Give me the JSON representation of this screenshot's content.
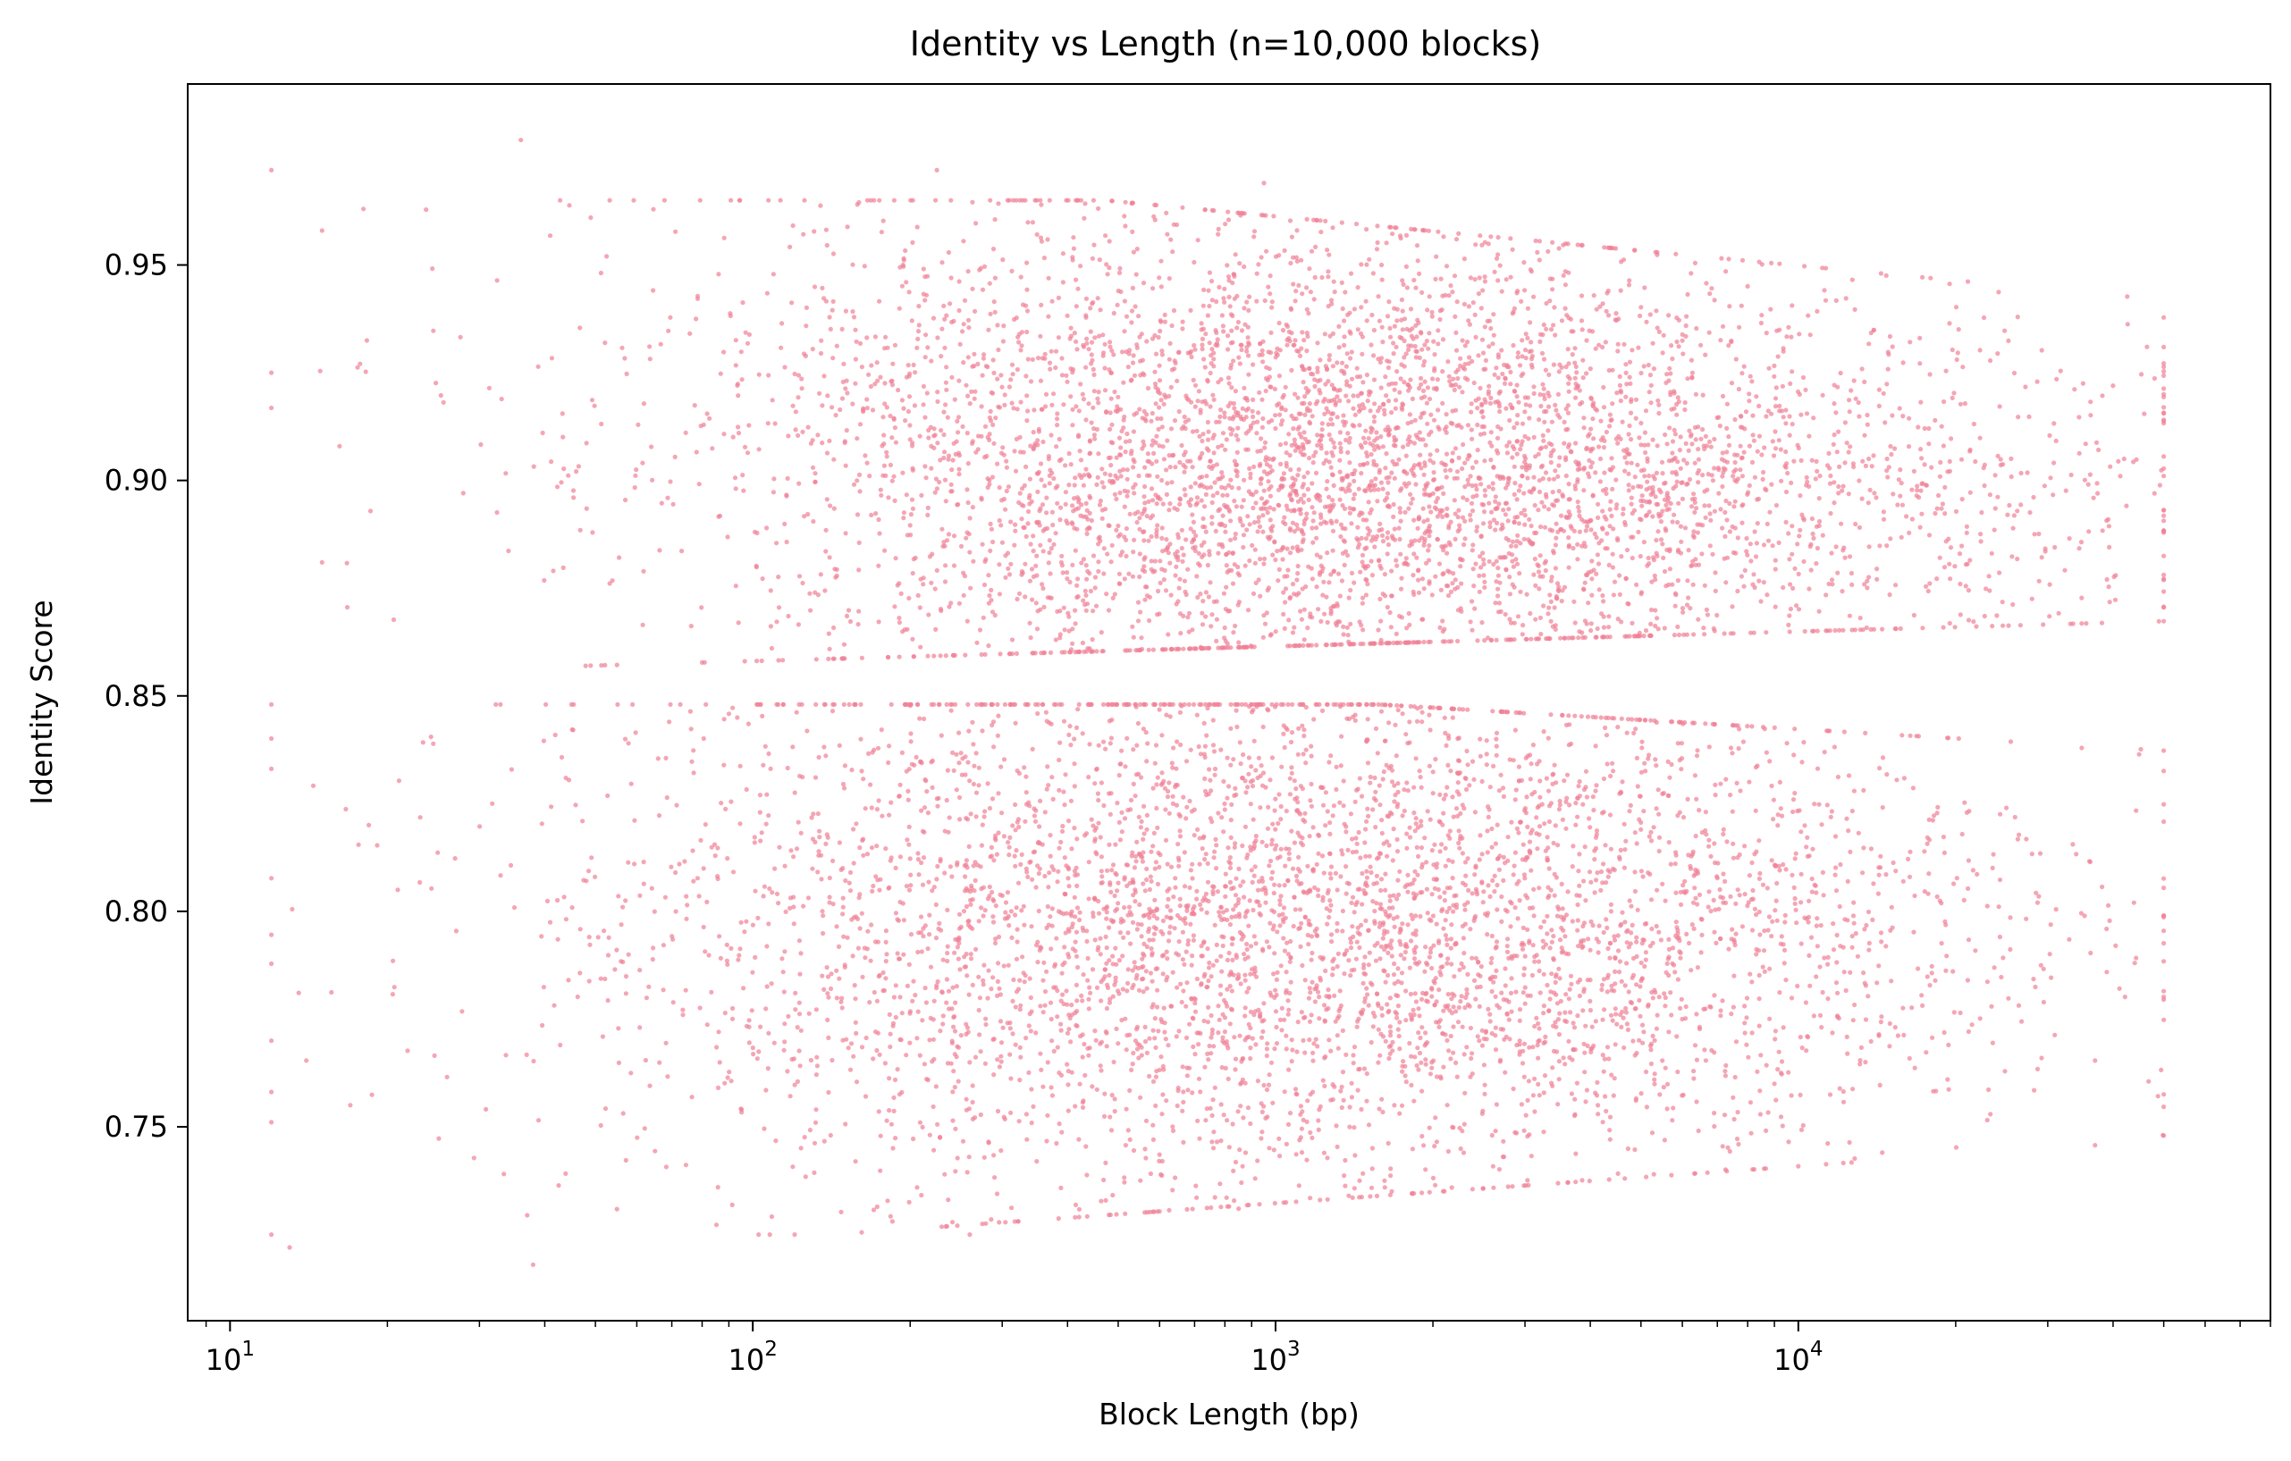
{
  "chart_data": {
    "type": "scatter",
    "title": "Identity vs Length (n=10,000 blocks)",
    "xlabel": "Block Length (bp)",
    "ylabel": "Identity Score",
    "xscale": "log",
    "xlim": [
      8.3,
      80000
    ],
    "ylim": [
      0.705,
      0.992
    ],
    "x_ticks": [
      {
        "base": "10",
        "exp": "1",
        "value": 10
      },
      {
        "base": "10",
        "exp": "2",
        "value": 100
      },
      {
        "base": "10",
        "exp": "3",
        "value": 1000
      },
      {
        "base": "10",
        "exp": "4",
        "value": 10000
      }
    ],
    "y_ticks": [
      "0.75",
      "0.80",
      "0.85",
      "0.90",
      "0.95"
    ],
    "y_tick_values": [
      0.75,
      0.8,
      0.85,
      0.9,
      0.95
    ],
    "marker_color": "#f08095",
    "marker_opacity": 0.7,
    "grid": false,
    "legend": "none",
    "clusters": [
      {
        "identity_range": [
          0.855,
          0.97
        ],
        "length_range_bp": [
          12,
          50000
        ],
        "center_identity": 0.905,
        "center_length_bp": 1500
      },
      {
        "identity_range": [
          0.72,
          0.85
        ],
        "length_range_bp": [
          12,
          50000
        ],
        "center_identity": 0.795,
        "center_length_bp": 1200
      }
    ],
    "sample_points": [
      [
        12,
        0.972
      ],
      [
        12,
        0.925
      ],
      [
        15,
        0.958
      ],
      [
        15,
        0.881
      ],
      [
        18,
        0.963
      ],
      [
        12,
        0.77
      ],
      [
        13,
        0.722
      ],
      [
        36,
        0.979
      ],
      [
        38,
        0.718
      ],
      [
        225,
        0.972
      ],
      [
        260,
        0.725
      ],
      [
        850,
        0.731
      ],
      [
        950,
        0.969
      ],
      [
        48000,
        0.897
      ],
      [
        50000,
        0.799
      ],
      [
        44000,
        0.788
      ],
      [
        40000,
        0.922
      ],
      [
        42000,
        0.905
      ],
      [
        25000,
        0.824
      ],
      [
        9000,
        0.76
      ]
    ]
  }
}
